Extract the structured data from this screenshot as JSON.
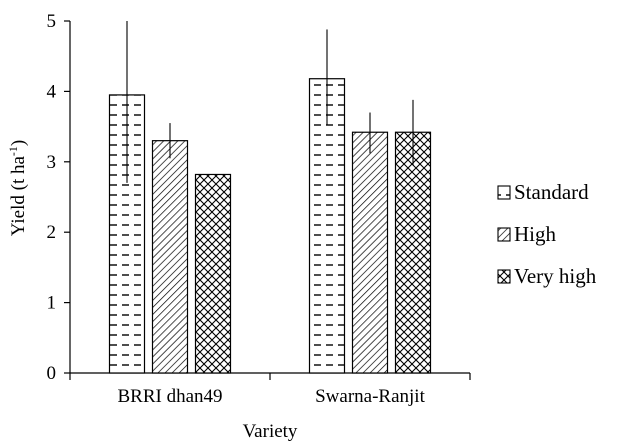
{
  "chart_data": {
    "type": "bar",
    "title": "",
    "xlabel": "Variety",
    "ylabel": "Yield (t ha",
    "ylabel_sup": "-1",
    "ylabel_close": ")",
    "ylim": [
      0,
      5
    ],
    "yticks": [
      "0",
      "1",
      "2",
      "3",
      "4",
      "5"
    ],
    "categories": [
      "BRRI dhan49",
      "Swarna-Ranjit"
    ],
    "legend_position": "right",
    "grid": false,
    "series": [
      {
        "name": "Standard",
        "pattern": "dashes",
        "values": [
          3.95,
          4.18
        ],
        "err_upper": [
          5.0,
          4.88
        ],
        "err_lower": [
          2.7,
          3.52
        ]
      },
      {
        "name": "High",
        "pattern": "diagonal",
        "values": [
          3.3,
          3.42
        ],
        "err_upper": [
          3.55,
          3.7
        ],
        "err_lower": [
          3.05,
          3.12
        ]
      },
      {
        "name": "Very high",
        "pattern": "crosshatch",
        "values": [
          2.82,
          3.42
        ],
        "err_upper": [
          2.82,
          3.88
        ],
        "err_lower": [
          2.82,
          2.95
        ]
      }
    ]
  }
}
